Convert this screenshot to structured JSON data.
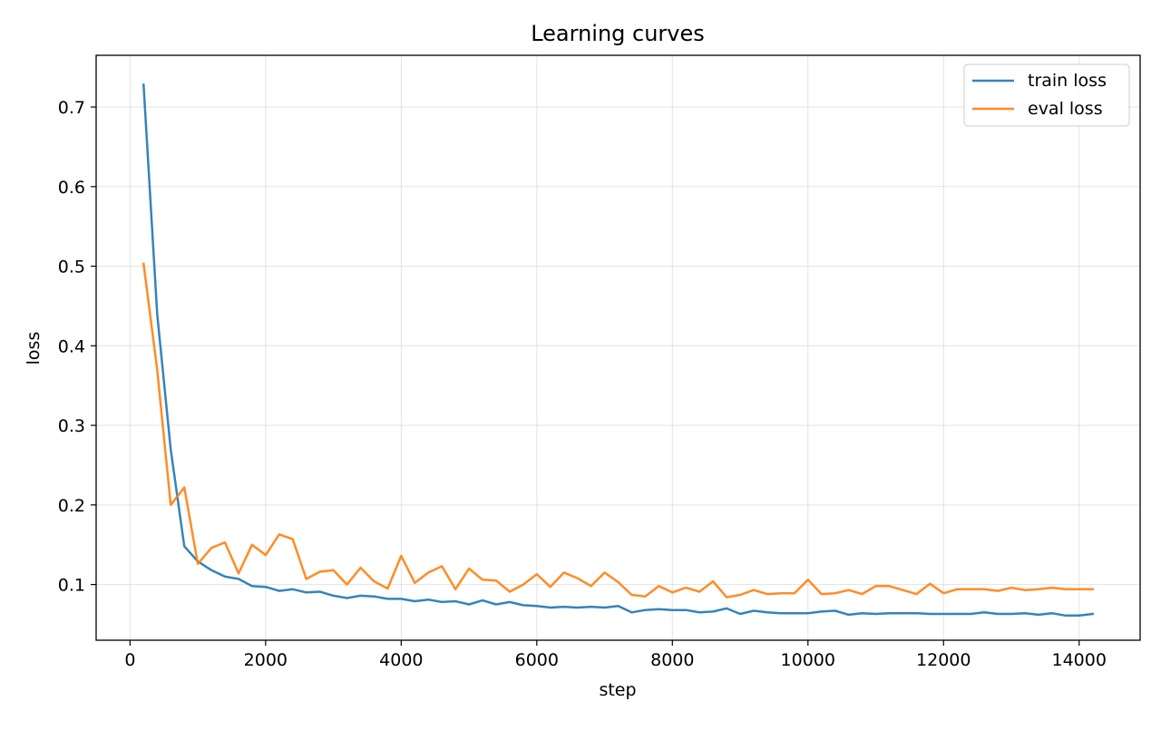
{
  "chart_data": {
    "type": "line",
    "title": "Learning curves",
    "xlabel": "step",
    "ylabel": "loss",
    "xlim": [
      -500,
      14900
    ],
    "ylim": [
      0.03,
      0.765
    ],
    "xticks": [
      0,
      2000,
      4000,
      6000,
      8000,
      10000,
      12000,
      14000
    ],
    "yticks": [
      0.1,
      0.2,
      0.3,
      0.4,
      0.5,
      0.6,
      0.7
    ],
    "xtick_labels": [
      "0",
      "2000",
      "4000",
      "6000",
      "8000",
      "10000",
      "12000",
      "14000"
    ],
    "ytick_labels": [
      "0.1",
      "0.2",
      "0.3",
      "0.4",
      "0.5",
      "0.6",
      "0.7"
    ],
    "grid": true,
    "legend_position": "top-right",
    "x": [
      200,
      400,
      600,
      800,
      1000,
      1200,
      1400,
      1600,
      1800,
      2000,
      2200,
      2400,
      2600,
      2800,
      3000,
      3200,
      3400,
      3600,
      3800,
      4000,
      4200,
      4400,
      4600,
      4800,
      5000,
      5200,
      5400,
      5600,
      5800,
      6000,
      6200,
      6400,
      6600,
      6800,
      7000,
      7200,
      7400,
      7600,
      7800,
      8000,
      8200,
      8400,
      8600,
      8800,
      9000,
      9200,
      9400,
      9600,
      9800,
      10000,
      10200,
      10400,
      10600,
      10800,
      11000,
      11200,
      11400,
      11600,
      11800,
      12000,
      12200,
      12400,
      12600,
      12800,
      13000,
      13200,
      13400,
      13600,
      13800,
      14000,
      14200
    ],
    "series": [
      {
        "name": "train loss",
        "color": "#1f77b4",
        "values": [
          0.728,
          0.44,
          0.27,
          0.148,
          0.129,
          0.118,
          0.11,
          0.107,
          0.098,
          0.097,
          0.092,
          0.094,
          0.09,
          0.091,
          0.086,
          0.083,
          0.086,
          0.085,
          0.082,
          0.082,
          0.079,
          0.081,
          0.078,
          0.079,
          0.075,
          0.08,
          0.075,
          0.078,
          0.074,
          0.073,
          0.071,
          0.072,
          0.071,
          0.072,
          0.071,
          0.073,
          0.065,
          0.068,
          0.069,
          0.068,
          0.068,
          0.065,
          0.066,
          0.07,
          0.063,
          0.067,
          0.065,
          0.064,
          0.064,
          0.064,
          0.066,
          0.067,
          0.062,
          0.064,
          0.063,
          0.064,
          0.064,
          0.064,
          0.063,
          0.063,
          0.063,
          0.063,
          0.065,
          0.063,
          0.063,
          0.064,
          0.062,
          0.064,
          0.061,
          0.061,
          0.063
        ]
      },
      {
        "name": "eval loss",
        "color": "#ff7f0e",
        "values": [
          0.503,
          0.37,
          0.2,
          0.222,
          0.126,
          0.146,
          0.153,
          0.114,
          0.15,
          0.137,
          0.163,
          0.157,
          0.107,
          0.116,
          0.118,
          0.1,
          0.121,
          0.104,
          0.095,
          0.136,
          0.102,
          0.115,
          0.123,
          0.094,
          0.12,
          0.106,
          0.105,
          0.091,
          0.1,
          0.113,
          0.097,
          0.115,
          0.108,
          0.098,
          0.115,
          0.103,
          0.087,
          0.085,
          0.098,
          0.09,
          0.096,
          0.091,
          0.104,
          0.084,
          0.087,
          0.093,
          0.088,
          0.089,
          0.089,
          0.106,
          0.088,
          0.089,
          0.093,
          0.088,
          0.098,
          0.098,
          0.093,
          0.088,
          0.101,
          0.089,
          0.094,
          0.094,
          0.094,
          0.092,
          0.096,
          0.093,
          0.094,
          0.096,
          0.094,
          0.094,
          0.094
        ]
      }
    ]
  }
}
